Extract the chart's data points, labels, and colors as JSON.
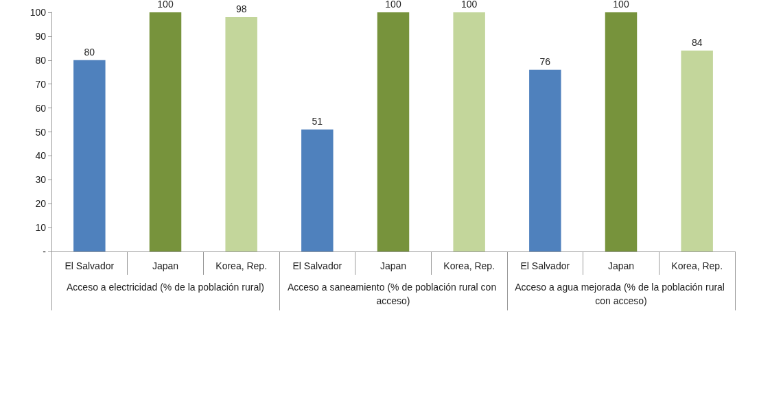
{
  "chart_data": {
    "type": "bar",
    "categories": [
      "El Salvador",
      "Japan",
      "Korea, Rep.",
      "El Salvador",
      "Japan",
      "Korea, Rep.",
      "El Salvador",
      "Japan",
      "Korea, Rep."
    ],
    "values": [
      80,
      100,
      98,
      51,
      100,
      100,
      76,
      100,
      84
    ],
    "colors": [
      "#4f81bd",
      "#77933c",
      "#c3d69b",
      "#4f81bd",
      "#77933c",
      "#c3d69b",
      "#4f81bd",
      "#77933c",
      "#c3d69b"
    ],
    "data_labels": true,
    "ylim": [
      0,
      100
    ],
    "yticks": [
      {
        "value": 0,
        "label": "-"
      },
      10,
      20,
      30,
      40,
      50,
      60,
      70,
      80,
      90,
      100
    ],
    "grid": false,
    "annotations": [
      "Acceso a electricidad (% de la población rural)",
      "Acceso a saneamiento (% de población rural con acceso)",
      "Acceso a agua mejorada (% de la población rural con acceso)"
    ]
  }
}
